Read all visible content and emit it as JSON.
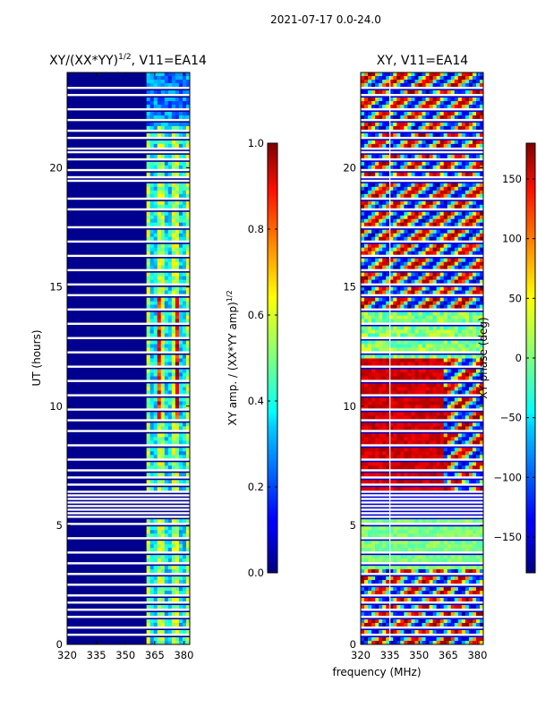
{
  "chart_data": {
    "suptitle": "2021-07-17 0.0-24.0",
    "common_xlabel": "frequency (MHz)",
    "panels": [
      {
        "type": "heatmap",
        "title": "XY/(XX*YY)^{1/2}, V11=EA14",
        "title_main": "XY/(XX*YY)",
        "title_sup": "1/2",
        "title_tail": ", V11=EA14",
        "ylabel": "UT (hours)",
        "xlim": [
          320,
          383
        ],
        "ylim": [
          0,
          24
        ],
        "xticks": [
          "320",
          "335",
          "350",
          "365",
          "380"
        ],
        "xtick_values": [
          320,
          335,
          350,
          365,
          380
        ],
        "yticks": [
          "0",
          "5",
          "10",
          "15",
          "20"
        ],
        "ytick_values": [
          0,
          5,
          10,
          15,
          20
        ],
        "colormap": "jet",
        "colorbar": {
          "label_main": "XY amp. / (XX*YY amp)",
          "label_sup": "1/2",
          "min": 0.0,
          "max": 1.0,
          "ticks": [
            "0.0",
            "0.2",
            "0.4",
            "0.6",
            "0.8",
            "1.0"
          ],
          "tick_values": [
            0.0,
            0.2,
            0.4,
            0.6,
            0.8,
            1.0
          ]
        }
      },
      {
        "type": "heatmap",
        "title": "XY, V11=EA14",
        "xlim": [
          320,
          383
        ],
        "ylim": [
          0,
          24
        ],
        "xticks": [
          "320",
          "335",
          "350",
          "365",
          "380"
        ],
        "xtick_values": [
          320,
          335,
          350,
          365,
          380
        ],
        "yticks": [
          "0",
          "5",
          "10",
          "15",
          "20"
        ],
        "ytick_values": [
          0,
          5,
          10,
          15,
          20
        ],
        "colormap": "jet",
        "colorbar": {
          "label": "XY phase (deg)",
          "min": -180,
          "max": 180,
          "ticks": [
            "−150",
            "−100",
            "−50",
            "0",
            "50",
            "100",
            "150"
          ],
          "tick_values": [
            -150,
            -100,
            -50,
            0,
            50,
            100,
            150
          ]
        }
      }
    ]
  }
}
